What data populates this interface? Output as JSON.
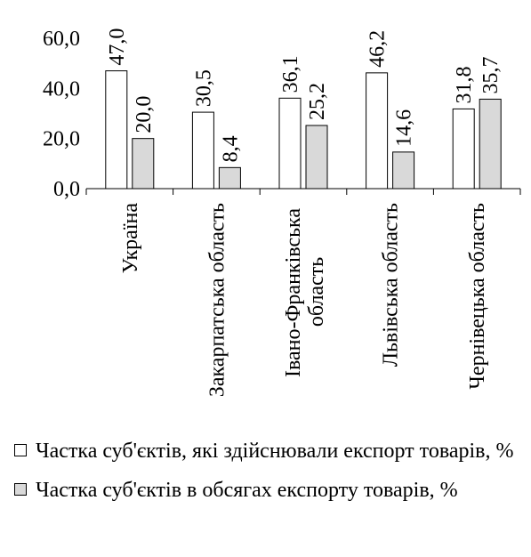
{
  "chart_data": {
    "type": "bar",
    "categories": [
      "Україна",
      "Закарпатська область",
      "Івано-Франківська область",
      "Львівська область",
      "Чернівецька область"
    ],
    "series": [
      {
        "name": "Частка суб'єктів, які здійснювали експорт товарів, %",
        "color": "#ffffff",
        "values": [
          47.0,
          30.5,
          36.1,
          46.2,
          31.8
        ],
        "value_labels": [
          "47,0",
          "30,5",
          "36,1",
          "46,2",
          "31,8"
        ]
      },
      {
        "name": "Частка суб'єктів в обсягах експорту товарів, %",
        "color": "#d9d9d9",
        "values": [
          20.0,
          8.4,
          25.2,
          14.6,
          35.7
        ],
        "value_labels": [
          "20,0",
          "8,4",
          "25,2",
          "14,6",
          "35,7"
        ]
      }
    ],
    "ylim": [
      0,
      60
    ],
    "yticks": [
      {
        "value": 0,
        "label": "0,0"
      },
      {
        "value": 20,
        "label": "20,0"
      },
      {
        "value": 40,
        "label": "40,0"
      },
      {
        "value": 60,
        "label": "60,0"
      }
    ],
    "grid": false,
    "legend": "bottom"
  }
}
